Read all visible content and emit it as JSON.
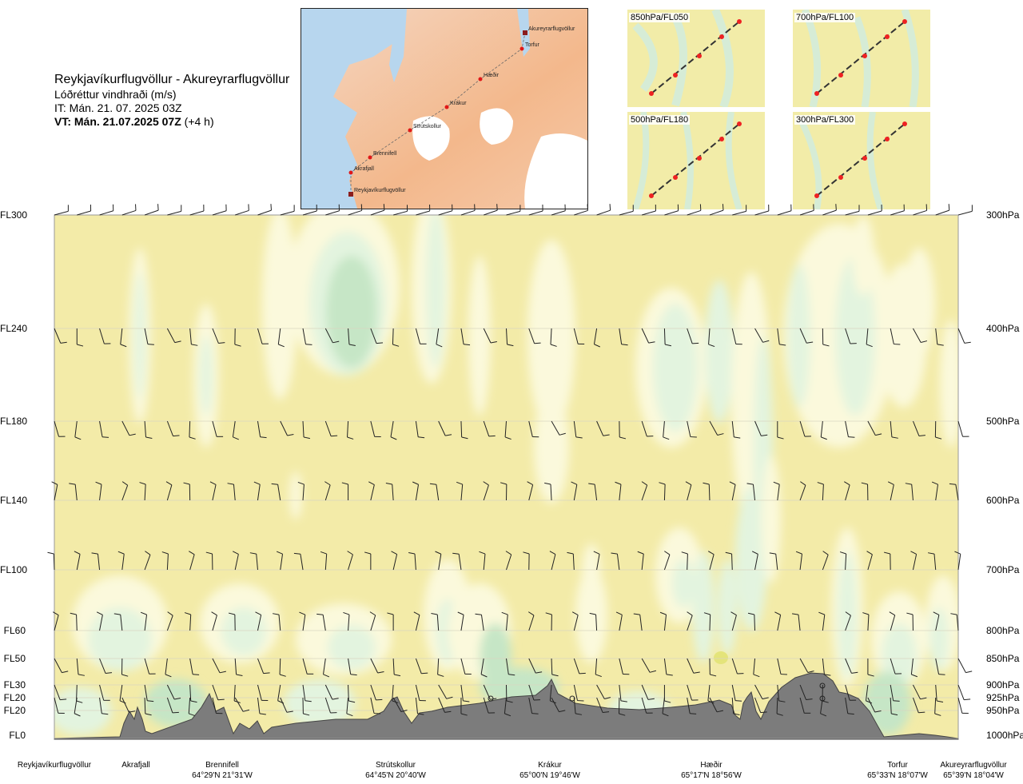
{
  "header": {
    "route": "Reykjavíkurflugvöllur - Akureyrarflugvöllur",
    "variable": "Lóðréttur vindhraði (m/s)",
    "issue_time": "IT: Mán. 21. 07. 2025 03Z",
    "valid_time": "VT: Mán. 21.07.2025 07Z",
    "lead": "(+4 h)"
  },
  "route_map": {
    "points": [
      {
        "name": "Reykjavíkurflugvöllur",
        "type": "airport"
      },
      {
        "name": "Akrafjall",
        "type": "waypoint"
      },
      {
        "name": "Brennifell",
        "type": "waypoint"
      },
      {
        "name": "Strútskollur",
        "type": "waypoint"
      },
      {
        "name": "Krákur",
        "type": "waypoint"
      },
      {
        "name": "Hæðir",
        "type": "waypoint"
      },
      {
        "name": "Torfur",
        "type": "waypoint"
      },
      {
        "name": "Akureyrarflugvöllur",
        "type": "airport"
      }
    ]
  },
  "level_maps": [
    {
      "label": "850hPa/FL050"
    },
    {
      "label": "700hPa/FL100"
    },
    {
      "label": "500hPa/FL180"
    },
    {
      "label": "300hPa/FL300"
    }
  ],
  "chart_data": {
    "type": "heatmap",
    "y_levels": [
      {
        "fl": "FL300",
        "hpa": "300hPa"
      },
      {
        "fl": "FL240",
        "hpa": "400hPa"
      },
      {
        "fl": "FL180",
        "hpa": "500hPa"
      },
      {
        "fl": "FL140",
        "hpa": "600hPa"
      },
      {
        "fl": "FL100",
        "hpa": "700hPa"
      },
      {
        "fl": "FL60",
        "hpa": "800hPa"
      },
      {
        "fl": "FL50",
        "hpa": "850hPa"
      },
      {
        "fl": "FL30",
        "hpa": "900hPa"
      },
      {
        "fl": "FL20",
        "hpa": "925hPa"
      },
      {
        "fl": "FL20",
        "hpa": "950hPa"
      },
      {
        "fl": "FL0",
        "hpa": "1000hPa"
      }
    ],
    "x_locations": [
      {
        "name": "Reykjavíkurflugvöllur",
        "coord": ""
      },
      {
        "name": "Akrafjall",
        "coord": ""
      },
      {
        "name": "Brennifell",
        "coord": "64°29'N 21°31'W"
      },
      {
        "name": "Strútskollur",
        "coord": "64°45'N 20°40'W"
      },
      {
        "name": "Krákur",
        "coord": "65°00'N 19°46'W"
      },
      {
        "name": "Hæðir",
        "coord": "65°17'N 18°56'W"
      },
      {
        "name": "Torfur",
        "coord": "65°33'N 18°07'W"
      },
      {
        "name": "Akureyrarflugvöllur",
        "coord": "65°39'N 18°04'W"
      }
    ],
    "colors": {
      "neutral": "#f3eba8",
      "light": "#fbf9dc",
      "pale_green": "#e3f4df",
      "mid_green": "#c6e6c6",
      "yellow_spot": "#e4e47a",
      "terrain": "#7c7c7c"
    },
    "grid": true
  }
}
